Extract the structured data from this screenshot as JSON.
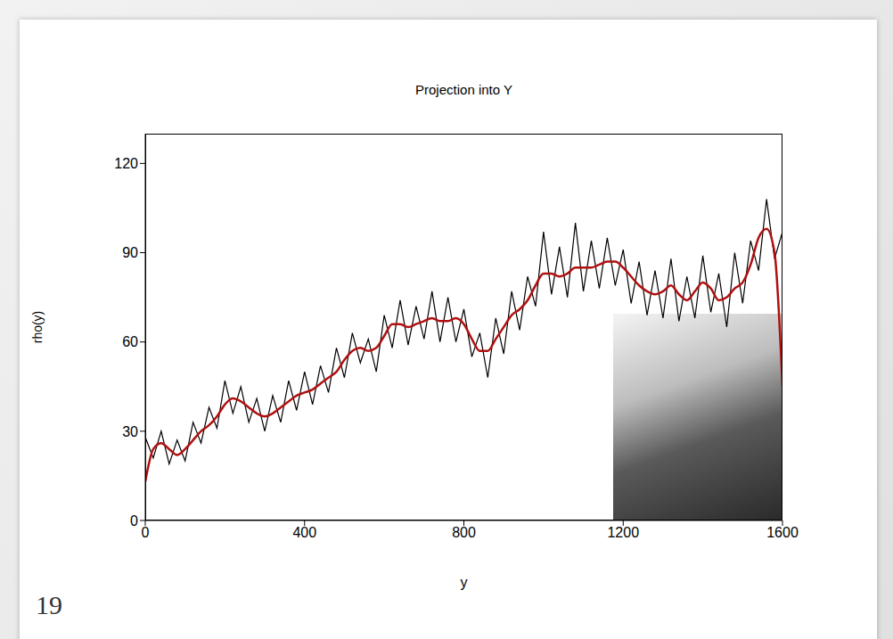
{
  "chart_data": {
    "type": "line",
    "title": "Projection into Y",
    "x_label": "y",
    "y_label": "rho(y)",
    "x": [
      0,
      20,
      40,
      60,
      80,
      100,
      120,
      140,
      160,
      180,
      200,
      220,
      240,
      260,
      280,
      300,
      320,
      340,
      360,
      380,
      400,
      420,
      440,
      460,
      480,
      500,
      520,
      540,
      560,
      580,
      600,
      620,
      640,
      660,
      680,
      700,
      720,
      740,
      760,
      780,
      800,
      820,
      840,
      860,
      880,
      900,
      920,
      940,
      960,
      980,
      1000,
      1020,
      1040,
      1060,
      1080,
      1100,
      1120,
      1140,
      1160,
      1180,
      1200,
      1220,
      1240,
      1260,
      1280,
      1300,
      1320,
      1340,
      1360,
      1380,
      1400,
      1420,
      1440,
      1460,
      1480,
      1500,
      1520,
      1540,
      1560,
      1580,
      1600
    ],
    "series": [
      {
        "color": "#000000",
        "line_style": "solid",
        "values": [
          28,
          21,
          30,
          19,
          27,
          20,
          33,
          26,
          38,
          31,
          47,
          36,
          45,
          33,
          41,
          30,
          42,
          33,
          47,
          37,
          50,
          39,
          52,
          43,
          58,
          48,
          63,
          53,
          61,
          50,
          69,
          58,
          74,
          59,
          72,
          61,
          77,
          60,
          75,
          60,
          71,
          55,
          63,
          48,
          68,
          56,
          77,
          64,
          82,
          72,
          97,
          76,
          92,
          75,
          100,
          77,
          94,
          78,
          95,
          79,
          91,
          73,
          87,
          69,
          84,
          68,
          88,
          67,
          82,
          68,
          89,
          70,
          83,
          65,
          90,
          73,
          94,
          84,
          108,
          88,
          97
        ]
      },
      {
        "color": "#b01010",
        "line_style": "smooth",
        "values": [
          13,
          24,
          26,
          24,
          22,
          24,
          27,
          30,
          32,
          35,
          39,
          41,
          40,
          38,
          36,
          35,
          36,
          38,
          40,
          42,
          43,
          44,
          46,
          48,
          50,
          54,
          57,
          58,
          57,
          58,
          62,
          66,
          66,
          65,
          66,
          67,
          68,
          67,
          67,
          68,
          66,
          61,
          57,
          57,
          61,
          65,
          69,
          71,
          74,
          79,
          83,
          83,
          82,
          83,
          85,
          85,
          85,
          86,
          87,
          87,
          85,
          82,
          79,
          77,
          76,
          77,
          79,
          76,
          74,
          77,
          80,
          78,
          74,
          75,
          78,
          80,
          86,
          95,
          98,
          90,
          45
        ]
      }
    ],
    "xlim": [
      0,
      1600
    ],
    "xticks": [
      0,
      400,
      800,
      1200,
      1600
    ],
    "ylim": [
      0,
      130
    ],
    "yticks": [
      0,
      30,
      60,
      90,
      120
    ],
    "grid": false,
    "tick_labels": true
  },
  "slide_number": "19"
}
